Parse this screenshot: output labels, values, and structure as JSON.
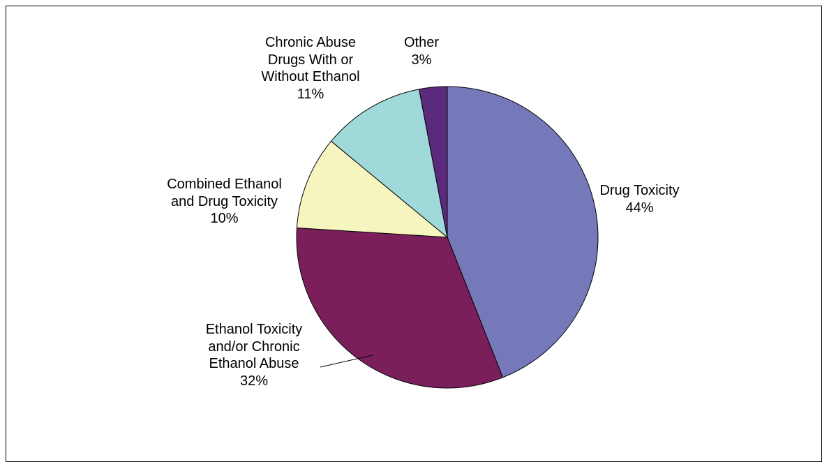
{
  "chart_data": {
    "type": "pie",
    "title": "",
    "slices": [
      {
        "label": "Drug Toxicity",
        "value": 44,
        "value_label": "44%",
        "color": "#7579ba"
      },
      {
        "label": "Ethanol Toxicity and/or Chronic Ethanol Abuse",
        "value": 32,
        "value_label": "32%",
        "color": "#7b1f5b"
      },
      {
        "label": "Combined Ethanol and Drug Toxicity",
        "value": 10,
        "value_label": "10%",
        "color": "#f6f5bf"
      },
      {
        "label": "Chronic Abuse Drugs With or Without Ethanol",
        "value": 11,
        "value_label": "11%",
        "color": "#a0d9da"
      },
      {
        "label": "Other",
        "value": 3,
        "value_label": "3%",
        "color": "#5b2a7d"
      }
    ],
    "label_lines": [
      [
        "Drug Toxicity"
      ],
      [
        "Ethanol Toxicity",
        "and/or Chronic",
        "Ethanol Abuse"
      ],
      [
        "Combined Ethanol",
        "and Drug Toxicity"
      ],
      [
        "Chronic Abuse",
        "Drugs With or",
        "Without Ethanol"
      ],
      [
        "Other"
      ]
    ],
    "start_angle": "12 o'clock",
    "direction": "clockwise",
    "legend": "none"
  }
}
